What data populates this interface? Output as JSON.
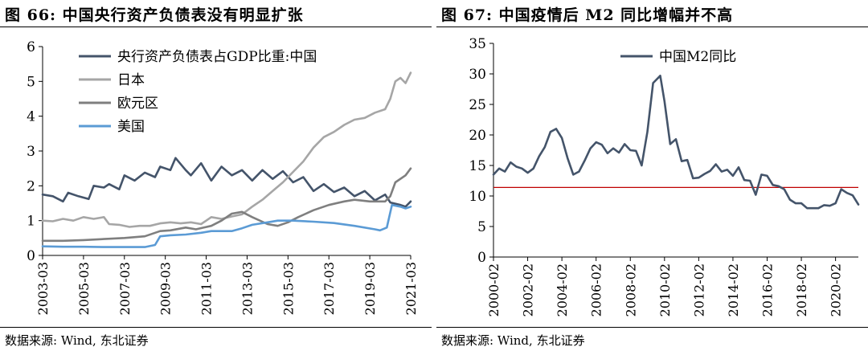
{
  "figures": [
    {
      "title": "图 66: 中国央行资产负债表没有明显扩张",
      "source": "数据来源: Wind, 东北证券"
    },
    {
      "title": "图 67: 中国疫情后 M2 同比增幅并不高",
      "source": "数据来源: Wind, 东北证券"
    }
  ],
  "chart_data": [
    {
      "type": "line",
      "title": "",
      "xlabel": "",
      "ylabel": "",
      "ylim": [
        0,
        6
      ],
      "yticks": [
        "0",
        "1",
        "2",
        "3",
        "4",
        "5",
        "6"
      ],
      "xlim": [
        "2003-03",
        "2021-03"
      ],
      "xticks": [
        "2003-03",
        "2005-03",
        "2007-03",
        "2009-03",
        "2011-03",
        "2013-03",
        "2015-03",
        "2017-03",
        "2019-03",
        "2021-03"
      ],
      "legend_position": "top-left",
      "grid": false,
      "series": [
        {
          "name": "央行资产负债表占GDP比重:中国",
          "color": "#44546a",
          "points": [
            [
              "2003-03",
              1.75
            ],
            [
              "2003-09",
              1.7
            ],
            [
              "2004-03",
              1.55
            ],
            [
              "2004-06",
              1.8
            ],
            [
              "2004-12",
              1.7
            ],
            [
              "2005-06",
              1.62
            ],
            [
              "2005-09",
              2.0
            ],
            [
              "2006-03",
              1.95
            ],
            [
              "2006-06",
              2.05
            ],
            [
              "2006-12",
              1.9
            ],
            [
              "2007-03",
              2.3
            ],
            [
              "2007-09",
              2.15
            ],
            [
              "2008-03",
              2.38
            ],
            [
              "2008-09",
              2.25
            ],
            [
              "2008-12",
              2.55
            ],
            [
              "2009-06",
              2.45
            ],
            [
              "2009-09",
              2.8
            ],
            [
              "2010-03",
              2.45
            ],
            [
              "2010-06",
              2.3
            ],
            [
              "2010-12",
              2.65
            ],
            [
              "2011-06",
              2.15
            ],
            [
              "2011-12",
              2.55
            ],
            [
              "2012-06",
              2.3
            ],
            [
              "2012-12",
              2.45
            ],
            [
              "2013-06",
              2.15
            ],
            [
              "2013-12",
              2.45
            ],
            [
              "2014-06",
              2.2
            ],
            [
              "2014-12",
              2.42
            ],
            [
              "2015-06",
              2.1
            ],
            [
              "2015-12",
              2.25
            ],
            [
              "2016-06",
              1.85
            ],
            [
              "2016-12",
              2.05
            ],
            [
              "2017-06",
              1.82
            ],
            [
              "2017-12",
              1.95
            ],
            [
              "2018-06",
              1.7
            ],
            [
              "2018-12",
              1.85
            ],
            [
              "2019-06",
              1.58
            ],
            [
              "2019-12",
              1.75
            ],
            [
              "2020-03",
              1.52
            ],
            [
              "2020-09",
              1.45
            ],
            [
              "2020-12",
              1.4
            ],
            [
              "2021-03",
              1.55
            ]
          ]
        },
        {
          "name": "日本",
          "color": "#a6a6a6",
          "points": [
            [
              "2003-03",
              1.0
            ],
            [
              "2003-09",
              0.98
            ],
            [
              "2004-03",
              1.05
            ],
            [
              "2004-09",
              1.0
            ],
            [
              "2005-03",
              1.1
            ],
            [
              "2005-09",
              1.05
            ],
            [
              "2006-03",
              1.1
            ],
            [
              "2006-06",
              0.9
            ],
            [
              "2006-12",
              0.88
            ],
            [
              "2007-06",
              0.82
            ],
            [
              "2007-12",
              0.85
            ],
            [
              "2008-06",
              0.85
            ],
            [
              "2008-12",
              0.92
            ],
            [
              "2009-06",
              0.95
            ],
            [
              "2009-12",
              0.92
            ],
            [
              "2010-06",
              0.95
            ],
            [
              "2010-12",
              0.9
            ],
            [
              "2011-06",
              1.1
            ],
            [
              "2011-12",
              1.05
            ],
            [
              "2012-06",
              1.12
            ],
            [
              "2012-12",
              1.18
            ],
            [
              "2013-06",
              1.4
            ],
            [
              "2013-12",
              1.6
            ],
            [
              "2014-06",
              1.85
            ],
            [
              "2014-12",
              2.1
            ],
            [
              "2015-06",
              2.4
            ],
            [
              "2015-12",
              2.7
            ],
            [
              "2016-06",
              3.1
            ],
            [
              "2016-12",
              3.4
            ],
            [
              "2017-06",
              3.55
            ],
            [
              "2017-12",
              3.75
            ],
            [
              "2018-06",
              3.9
            ],
            [
              "2018-12",
              3.95
            ],
            [
              "2019-06",
              4.1
            ],
            [
              "2019-12",
              4.2
            ],
            [
              "2020-03",
              4.5
            ],
            [
              "2020-06",
              5.0
            ],
            [
              "2020-09",
              5.1
            ],
            [
              "2020-12",
              4.95
            ],
            [
              "2021-03",
              5.25
            ]
          ]
        },
        {
          "name": "欧元区",
          "color": "#7f7f7f",
          "points": [
            [
              "2003-03",
              0.42
            ],
            [
              "2004-03",
              0.42
            ],
            [
              "2005-03",
              0.44
            ],
            [
              "2006-03",
              0.47
            ],
            [
              "2007-03",
              0.5
            ],
            [
              "2008-03",
              0.55
            ],
            [
              "2008-12",
              0.7
            ],
            [
              "2009-06",
              0.72
            ],
            [
              "2010-03",
              0.8
            ],
            [
              "2010-09",
              0.75
            ],
            [
              "2011-06",
              0.85
            ],
            [
              "2011-12",
              1.0
            ],
            [
              "2012-06",
              1.2
            ],
            [
              "2012-12",
              1.25
            ],
            [
              "2013-06",
              1.1
            ],
            [
              "2014-03",
              0.9
            ],
            [
              "2014-09",
              0.85
            ],
            [
              "2015-03",
              0.95
            ],
            [
              "2015-09",
              1.1
            ],
            [
              "2016-06",
              1.3
            ],
            [
              "2017-03",
              1.45
            ],
            [
              "2017-12",
              1.55
            ],
            [
              "2018-06",
              1.6
            ],
            [
              "2019-03",
              1.55
            ],
            [
              "2019-12",
              1.55
            ],
            [
              "2020-03",
              1.7
            ],
            [
              "2020-06",
              2.1
            ],
            [
              "2020-12",
              2.3
            ],
            [
              "2021-03",
              2.5
            ]
          ]
        },
        {
          "name": "美国",
          "color": "#5b9bd5",
          "points": [
            [
              "2003-03",
              0.26
            ],
            [
              "2004-03",
              0.25
            ],
            [
              "2005-03",
              0.25
            ],
            [
              "2006-03",
              0.24
            ],
            [
              "2007-03",
              0.24
            ],
            [
              "2008-03",
              0.24
            ],
            [
              "2008-09",
              0.3
            ],
            [
              "2008-12",
              0.55
            ],
            [
              "2009-06",
              0.58
            ],
            [
              "2010-03",
              0.6
            ],
            [
              "2010-12",
              0.65
            ],
            [
              "2011-06",
              0.7
            ],
            [
              "2012-06",
              0.7
            ],
            [
              "2012-12",
              0.78
            ],
            [
              "2013-06",
              0.88
            ],
            [
              "2014-03",
              0.95
            ],
            [
              "2014-09",
              1.0
            ],
            [
              "2015-06",
              1.0
            ],
            [
              "2016-06",
              0.97
            ],
            [
              "2017-06",
              0.93
            ],
            [
              "2018-06",
              0.85
            ],
            [
              "2019-06",
              0.75
            ],
            [
              "2019-09",
              0.72
            ],
            [
              "2020-01",
              0.8
            ],
            [
              "2020-04",
              1.45
            ],
            [
              "2020-09",
              1.4
            ],
            [
              "2020-12",
              1.35
            ],
            [
              "2021-03",
              1.4
            ]
          ]
        }
      ]
    },
    {
      "type": "line",
      "title": "",
      "xlabel": "",
      "ylabel": "",
      "ylim": [
        0,
        35
      ],
      "yticks": [
        "0",
        "5",
        "10",
        "15",
        "20",
        "25",
        "30",
        "35"
      ],
      "xlim": [
        "2000-02",
        "2021-06"
      ],
      "xticks": [
        "2000-02",
        "2002-02",
        "2004-02",
        "2006-02",
        "2008-02",
        "2010-02",
        "2012-02",
        "2014-02",
        "2016-02",
        "2018-02",
        "2020-02"
      ],
      "legend_position": "top-left",
      "grid": false,
      "reference_line": {
        "value": 11.4,
        "color": "#c00000"
      },
      "series": [
        {
          "name": "中国M2同比",
          "color": "#44546a",
          "points": [
            [
              "2000-02",
              13.5
            ],
            [
              "2000-06",
              14.5
            ],
            [
              "2000-10",
              14.0
            ],
            [
              "2001-02",
              15.5
            ],
            [
              "2001-06",
              14.8
            ],
            [
              "2001-10",
              14.5
            ],
            [
              "2002-02",
              13.8
            ],
            [
              "2002-06",
              14.5
            ],
            [
              "2002-10",
              16.5
            ],
            [
              "2003-02",
              18.0
            ],
            [
              "2003-06",
              20.5
            ],
            [
              "2003-10",
              21.0
            ],
            [
              "2004-02",
              19.5
            ],
            [
              "2004-06",
              16.2
            ],
            [
              "2004-10",
              13.5
            ],
            [
              "2005-02",
              14.0
            ],
            [
              "2005-06",
              15.8
            ],
            [
              "2005-10",
              17.8
            ],
            [
              "2006-02",
              18.8
            ],
            [
              "2006-06",
              18.4
            ],
            [
              "2006-10",
              17.0
            ],
            [
              "2007-02",
              17.8
            ],
            [
              "2007-06",
              17.1
            ],
            [
              "2007-10",
              18.5
            ],
            [
              "2008-02",
              17.5
            ],
            [
              "2008-06",
              17.4
            ],
            [
              "2008-10",
              15.0
            ],
            [
              "2008-12",
              17.8
            ],
            [
              "2009-02",
              20.5
            ],
            [
              "2009-06",
              28.5
            ],
            [
              "2009-11",
              29.7
            ],
            [
              "2010-02",
              25.5
            ],
            [
              "2010-06",
              18.5
            ],
            [
              "2010-10",
              19.3
            ],
            [
              "2011-02",
              15.7
            ],
            [
              "2011-06",
              15.9
            ],
            [
              "2011-10",
              12.9
            ],
            [
              "2012-02",
              13.0
            ],
            [
              "2012-06",
              13.6
            ],
            [
              "2012-10",
              14.1
            ],
            [
              "2013-02",
              15.2
            ],
            [
              "2013-06",
              14.0
            ],
            [
              "2013-10",
              14.3
            ],
            [
              "2014-02",
              13.3
            ],
            [
              "2014-06",
              14.7
            ],
            [
              "2014-10",
              12.6
            ],
            [
              "2015-02",
              12.5
            ],
            [
              "2015-06",
              10.2
            ],
            [
              "2015-10",
              13.5
            ],
            [
              "2016-02",
              13.3
            ],
            [
              "2016-06",
              11.8
            ],
            [
              "2016-10",
              11.6
            ],
            [
              "2017-02",
              11.1
            ],
            [
              "2017-06",
              9.4
            ],
            [
              "2017-10",
              8.8
            ],
            [
              "2018-02",
              8.8
            ],
            [
              "2018-06",
              8.0
            ],
            [
              "2018-10",
              8.0
            ],
            [
              "2019-02",
              8.0
            ],
            [
              "2019-06",
              8.5
            ],
            [
              "2019-10",
              8.4
            ],
            [
              "2020-02",
              8.8
            ],
            [
              "2020-06",
              11.1
            ],
            [
              "2020-10",
              10.5
            ],
            [
              "2021-02",
              10.1
            ],
            [
              "2021-06",
              8.6
            ]
          ]
        }
      ]
    }
  ]
}
